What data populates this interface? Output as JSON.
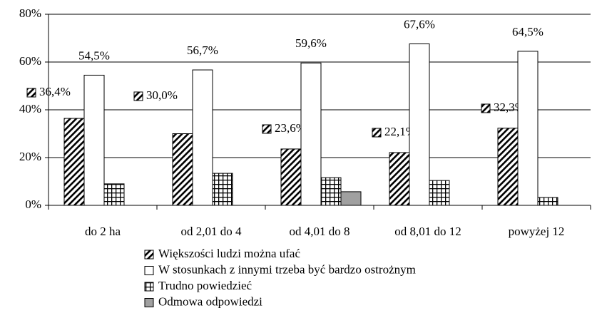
{
  "chart_data": {
    "type": "bar",
    "categories": [
      "do 2 ha",
      "od 2,01 do 4",
      "od 4,01 do 8",
      "od 8,01 do 12",
      "powyżej 12"
    ],
    "series": [
      {
        "name": "Większości ludzi można ufać",
        "color": "#ffffff",
        "pattern": "diagonal",
        "values": [
          36.4,
          30.0,
          23.6,
          22.1,
          32.3
        ],
        "value_labels": [
          "36,4%",
          "30,0%",
          "23,6%",
          "22,1%",
          "32,3%"
        ]
      },
      {
        "name": "W stosunkach z innymi trzeba być bardzo ostrożnym",
        "color": "#ffffff",
        "pattern": null,
        "values": [
          54.5,
          56.7,
          59.6,
          67.6,
          64.5
        ],
        "value_labels": [
          "54,5%",
          "56,7%",
          "59,6%",
          "67,6%",
          "64,5%"
        ]
      },
      {
        "name": "Trudno powiedzieć",
        "color": "#ffffff",
        "pattern": "grid",
        "values": [
          9.0,
          13.4,
          11.6,
          10.4,
          3.3
        ]
      },
      {
        "name": "Odmowa odpowiedzi",
        "color": "#a0a0a0",
        "pattern": null,
        "values": [
          null,
          null,
          5.7,
          null,
          null
        ]
      }
    ],
    "ylim": [
      0,
      80
    ],
    "yticks": [
      {
        "value": 0,
        "label": "0%"
      },
      {
        "value": 20,
        "label": "20%"
      },
      {
        "value": 40,
        "label": "40%"
      },
      {
        "value": 60,
        "label": "60%"
      },
      {
        "value": 80,
        "label": "80%"
      }
    ],
    "grid": true
  }
}
